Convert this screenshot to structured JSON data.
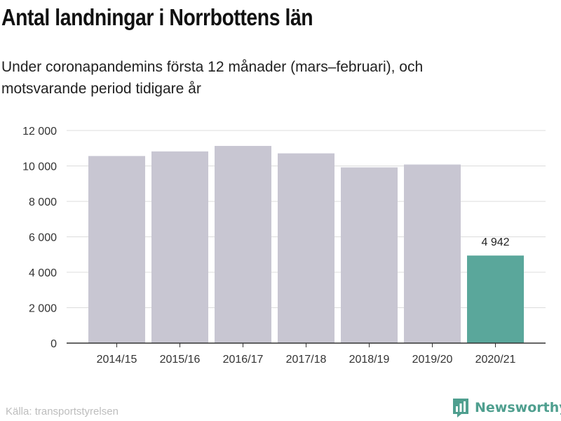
{
  "header": {
    "title": "Antal landningar i Norrbottens län",
    "subtitle": "Under coronapandemins första 12 månader (mars–februari), och motsvarande period tidigare år"
  },
  "footer": {
    "source": "Källa: transportstyrelsen",
    "brand": "Newsworthy"
  },
  "colors": {
    "bar": "#c8c6d2",
    "highlight": "#5aa79b",
    "grid": "#dcdcdc",
    "axis": "#333333",
    "brand": "#4f9f8f"
  },
  "chart_data": {
    "type": "bar",
    "categories": [
      "2014/15",
      "2015/16",
      "2016/17",
      "2017/18",
      "2018/19",
      "2019/20",
      "2020/21"
    ],
    "values": [
      10560,
      10820,
      11130,
      10710,
      9920,
      10080,
      4942
    ],
    "highlight_index": 6,
    "data_labels": [
      "",
      "",
      "",
      "",
      "",
      "",
      "4 942"
    ],
    "ylim": [
      0,
      12000
    ],
    "yticks": [
      0,
      2000,
      4000,
      6000,
      8000,
      10000,
      12000
    ],
    "ytick_labels": [
      "0",
      "2 000",
      "4 000",
      "6 000",
      "8 000",
      "10 000",
      "12 000"
    ],
    "grid": true,
    "legend": "none"
  }
}
